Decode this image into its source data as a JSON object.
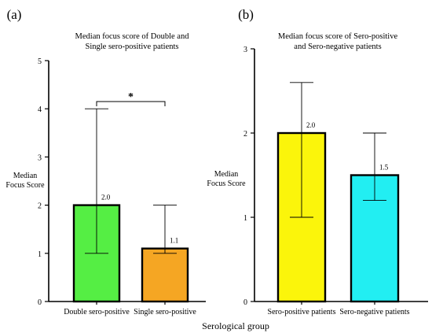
{
  "figure": {
    "xlabel": "Serological group"
  },
  "chart_data": [
    {
      "panel_label": "(a)",
      "type": "bar",
      "title_lines": [
        "Median focus score of Double and",
        "Single sero-positive patients"
      ],
      "ylabel_lines": [
        "Median",
        "Focus Score"
      ],
      "ylim": [
        0,
        5
      ],
      "yticks": [
        0,
        1,
        2,
        3,
        4,
        5
      ],
      "categories": [
        "Double sero-positive",
        "Single sero-positive"
      ],
      "values": [
        2.0,
        1.1
      ],
      "value_labels": [
        "2.0",
        "1.1"
      ],
      "error_low": [
        1.0,
        1.0
      ],
      "error_high": [
        4.0,
        2.0
      ],
      "colors": [
        "#55ee44",
        "#f5a623"
      ],
      "significance": {
        "between": [
          0,
          1
        ],
        "label": "*"
      },
      "grid": false
    },
    {
      "panel_label": "(b)",
      "type": "bar",
      "title_lines": [
        "Median focus score of Sero-positive",
        "and Sero-negative patients"
      ],
      "ylabel_lines": [
        "Median",
        "Focus Score"
      ],
      "ylim": [
        0,
        3
      ],
      "yticks": [
        0,
        1,
        2,
        3
      ],
      "categories": [
        "Sero-positive patients",
        "Sero-negative patients"
      ],
      "values": [
        2.0,
        1.5
      ],
      "value_labels": [
        "2.0",
        "1.5"
      ],
      "error_low": [
        1.0,
        1.2
      ],
      "error_high": [
        2.6,
        2.0
      ],
      "colors": [
        "#fbf50b",
        "#22eef2"
      ],
      "grid": false
    }
  ]
}
